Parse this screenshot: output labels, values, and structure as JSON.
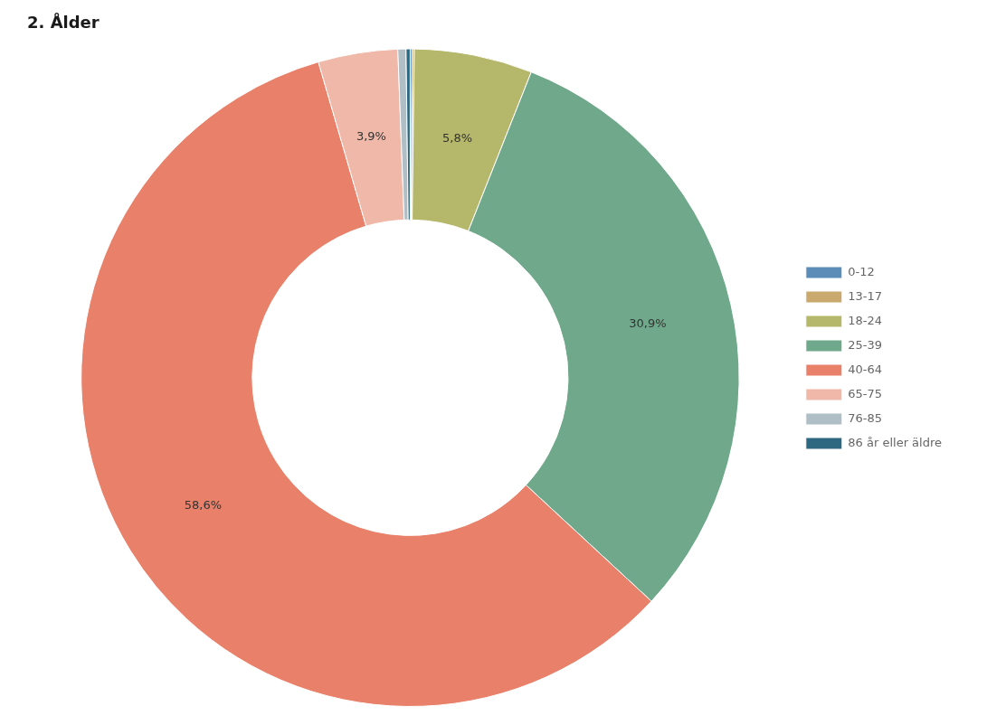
{
  "chart_data": {
    "type": "doughnut",
    "title": "2. Ålder",
    "categories": [
      "0-12",
      "13-17",
      "18-24",
      "25-39",
      "40-64",
      "65-75",
      "76-85",
      "86 år eller äldre"
    ],
    "values": [
      0.1,
      0.1,
      5.8,
      30.9,
      58.6,
      3.9,
      0.4,
      0.2
    ],
    "value_labels": [
      null,
      null,
      "5,8%",
      "30,9%",
      "58,6%",
      "3,9%",
      null,
      null
    ],
    "colors": [
      "#5b8db8",
      "#c9a96e",
      "#b5b86a",
      "#6fa88a",
      "#e8806a",
      "#f0b8a8",
      "#b0bec5",
      "#2e6880"
    ],
    "data_labels": true,
    "legend": "right"
  }
}
